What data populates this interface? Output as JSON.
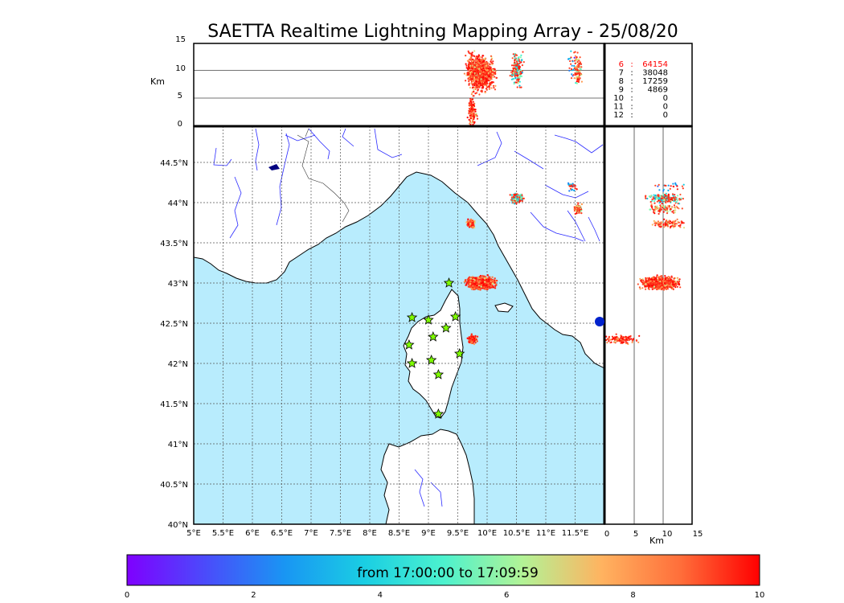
{
  "title": "SAETTA Realtime Lightning Mapping Array - 25/08/20",
  "map": {
    "lon_ticks": [
      "5°E",
      "5.5°E",
      "6°E",
      "6.5°E",
      "7°E",
      "7.5°E",
      "8°E",
      "8.5°E",
      "9°E",
      "9.5°E",
      "10°E",
      "10.5°E",
      "11°E",
      "11.5°E"
    ],
    "lat_ticks": [
      "40°N",
      "40.5°N",
      "41°N",
      "41.5°N",
      "42°N",
      "42.5°N",
      "43°N",
      "43.5°N",
      "44°N",
      "44.5°N"
    ],
    "lon_range": [
      5.0,
      12.0
    ],
    "lat_range": [
      40.0,
      44.95
    ],
    "sea_color": "#b8ecfd",
    "land_color": "#ffffff",
    "grid": "dotted"
  },
  "altitude_panel": {
    "axis_label": "Km",
    "ticks": [
      "0",
      "5",
      "10",
      "15"
    ],
    "range": [
      0,
      15
    ]
  },
  "side_panel": {
    "axis_label": "Km",
    "ticks": [
      "0",
      "5",
      "10",
      "15"
    ],
    "range": [
      0,
      15
    ]
  },
  "station_counts": [
    {
      "stations": "6",
      "sep": ":",
      "count": "64154",
      "highlight": true
    },
    {
      "stations": "7",
      "sep": ":",
      "count": "38048",
      "highlight": false
    },
    {
      "stations": "8",
      "sep": ":",
      "count": "17259",
      "highlight": false
    },
    {
      "stations": "9",
      "sep": ":",
      "count": "4869",
      "highlight": false
    },
    {
      "stations": "10",
      "sep": ":",
      "count": "0",
      "highlight": false
    },
    {
      "stations": "11",
      "sep": ":",
      "count": "0",
      "highlight": false
    },
    {
      "stations": "12",
      "sep": ":",
      "count": "0",
      "highlight": false
    }
  ],
  "colorbar": {
    "label": "from 17:00:00 to 17:09:59",
    "ticks": [
      "0",
      "2",
      "4",
      "6",
      "8",
      "10"
    ],
    "range": [
      0,
      10
    ],
    "colors": [
      "#7f00ff",
      "#2c7ef7",
      "#00b5eb",
      "#30edd7",
      "#80ffb4",
      "#d3ed8f",
      "#ffb360",
      "#ff6e3a",
      "#ff0000"
    ]
  },
  "stations_markers": [
    {
      "lon": 9.35,
      "lat": 43.0
    },
    {
      "lon": 8.72,
      "lat": 42.57
    },
    {
      "lon": 9.0,
      "lat": 42.54
    },
    {
      "lon": 9.46,
      "lat": 42.58
    },
    {
      "lon": 9.3,
      "lat": 42.44
    },
    {
      "lon": 9.08,
      "lat": 42.33
    },
    {
      "lon": 8.67,
      "lat": 42.23
    },
    {
      "lon": 8.72,
      "lat": 42.0
    },
    {
      "lon": 9.05,
      "lat": 42.04
    },
    {
      "lon": 9.53,
      "lat": 42.12
    },
    {
      "lon": 9.17,
      "lat": 41.86
    },
    {
      "lon": 9.17,
      "lat": 41.37
    }
  ],
  "chart_data": {
    "type": "scatter",
    "title": "SAETTA Realtime Lightning Mapping Array - 25/08/20",
    "xlabel": "",
    "ylabel": "",
    "clusters": [
      {
        "lon": 9.9,
        "lat": 43.0,
        "alt_km": 9.5,
        "time_min": 8.5,
        "count": 900
      },
      {
        "lon": 9.75,
        "lat": 42.3,
        "alt_km": 3.0,
        "time_min": 9.0,
        "count": 120
      },
      {
        "lon": 9.73,
        "lat": 43.74,
        "alt_km": 11.0,
        "time_min": 8.0,
        "count": 100
      },
      {
        "lon": 10.5,
        "lat": 44.05,
        "alt_km": 10.5,
        "time_min": 4.0,
        "count": 180
      },
      {
        "lon": 11.55,
        "lat": 43.93,
        "alt_km": 10.0,
        "time_min": 6.5,
        "count": 90
      },
      {
        "lon": 11.45,
        "lat": 44.2,
        "alt_km": 11.0,
        "time_min": 2.0,
        "count": 25
      }
    ]
  }
}
